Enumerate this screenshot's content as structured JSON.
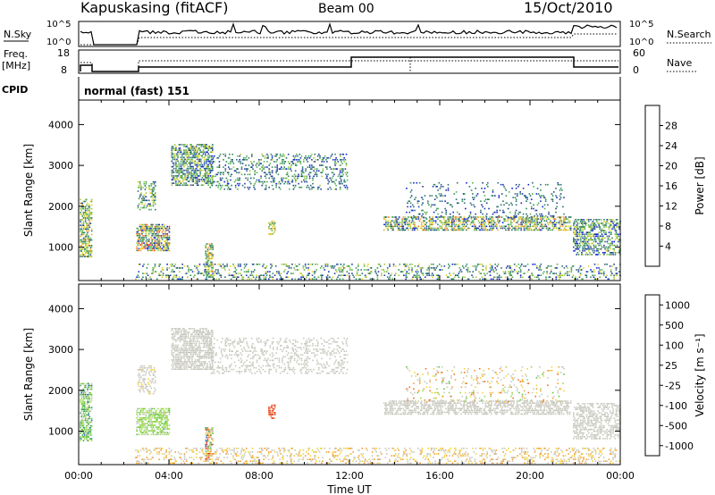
{
  "header": {
    "station": "Kapuskasing (fitACF)",
    "beam": "Beam 00",
    "date": "15/Oct/2010"
  },
  "panels": {
    "noise": {
      "left_label": "N.Sky",
      "right_label": "N.Search",
      "ticks": [
        "10^5",
        "10^0"
      ]
    },
    "freq": {
      "left_label_1": "Freq.",
      "left_label_2": "[MHz]",
      "left_ticks": [
        "18",
        "8"
      ],
      "right_label": "Nave",
      "right_ticks": [
        "60",
        "0"
      ]
    },
    "cpid": {
      "label": "CPID",
      "mode": "normal (fast) 151"
    }
  },
  "chart_data": [
    {
      "type": "heatmap",
      "name": "power",
      "ylabel": "Slant Range [km]",
      "ylim": [
        180,
        4600
      ],
      "yticks": [
        "1000",
        "2000",
        "3000",
        "4000"
      ],
      "xlim": [
        0,
        24
      ],
      "colorbar": {
        "label": "Power [dB]",
        "ticks": [
          "4",
          "8",
          "12",
          "16",
          "20",
          "24",
          "28"
        ],
        "colors": [
          "#0a1fe0",
          "#1f3c9e",
          "#2c6b78",
          "#2f8c5a",
          "#52b04d",
          "#a3c838",
          "#e7d22a",
          "#f0a428",
          "#f27022",
          "#e83a1e",
          "#e01010"
        ]
      },
      "scatter_clusters": [
        {
          "t0": 0.05,
          "t1": 0.55,
          "r0": 750,
          "r1": 2150,
          "density": 0.55,
          "levels": [
            0.1,
            0.7
          ]
        },
        {
          "t0": 2.55,
          "t1": 4.0,
          "r0": 900,
          "r1": 1550,
          "density": 0.6,
          "levels": [
            0.05,
            0.9
          ]
        },
        {
          "t0": 2.6,
          "t1": 3.4,
          "r0": 1900,
          "r1": 2600,
          "density": 0.35,
          "levels": [
            0.1,
            0.6
          ]
        },
        {
          "t0": 4.1,
          "t1": 5.9,
          "r0": 2500,
          "r1": 3500,
          "density": 0.55,
          "levels": [
            0.05,
            0.6
          ]
        },
        {
          "t0": 5.6,
          "t1": 5.95,
          "r0": 250,
          "r1": 1100,
          "density": 0.6,
          "levels": [
            0.2,
            0.8
          ]
        },
        {
          "t0": 5.8,
          "t1": 11.9,
          "r0": 2400,
          "r1": 3300,
          "density": 0.22,
          "levels": [
            0.05,
            0.5
          ]
        },
        {
          "t0": 8.4,
          "t1": 8.7,
          "r0": 1300,
          "r1": 1650,
          "density": 0.5,
          "levels": [
            0.3,
            0.7
          ]
        },
        {
          "t0": 13.5,
          "t1": 21.8,
          "r0": 1400,
          "r1": 1750,
          "density": 0.5,
          "levels": [
            0.05,
            0.75
          ]
        },
        {
          "t0": 14.5,
          "t1": 21.5,
          "r0": 1700,
          "r1": 2600,
          "density": 0.1,
          "levels": [
            0.05,
            0.4
          ]
        },
        {
          "t0": 21.9,
          "t1": 24.0,
          "r0": 800,
          "r1": 1700,
          "density": 0.45,
          "levels": [
            0.05,
            0.6
          ]
        },
        {
          "t0": 2.5,
          "t1": 24.0,
          "r0": 200,
          "r1": 600,
          "density": 0.2,
          "levels": [
            0.05,
            0.6
          ]
        }
      ]
    },
    {
      "type": "heatmap",
      "name": "velocity",
      "ylabel": "Slant Range [km]",
      "ylim": [
        180,
        4600
      ],
      "yticks": [
        "1000",
        "2000",
        "3000",
        "4000"
      ],
      "xlim": [
        0,
        24
      ],
      "xticks": [
        "00:00",
        "04:00",
        "08:00",
        "12:00",
        "16:00",
        "20:00",
        "00:00"
      ],
      "xlabel": "Time UT",
      "colorbar": {
        "label": "Velocity [m s⁻¹]",
        "ticks": [
          "1000",
          "500",
          "100",
          "25",
          "-25",
          "-100",
          "-500",
          "-1000"
        ],
        "colors": [
          "#1a2ec8",
          "#2d5ec0",
          "#3e9a66",
          "#5cc43a",
          "#9ad84a",
          "#c8c8be",
          "#c8c8be",
          "#f5d23a",
          "#f2a032",
          "#f07020",
          "#e53a1a",
          "#e01010"
        ]
      },
      "scatter_clusters": [
        {
          "t0": 0.05,
          "t1": 0.55,
          "r0": 750,
          "r1": 2150,
          "density": 0.55,
          "levels": [
            0.15,
            0.5
          ]
        },
        {
          "t0": 2.55,
          "t1": 4.0,
          "r0": 900,
          "r1": 1550,
          "density": 0.6,
          "levels": [
            0.3,
            0.45
          ]
        },
        {
          "t0": 2.6,
          "t1": 3.4,
          "r0": 1900,
          "r1": 2600,
          "density": 0.35,
          "levels": [
            0.45,
            0.6
          ]
        },
        {
          "t0": 4.1,
          "t1": 5.9,
          "r0": 2500,
          "r1": 3500,
          "density": 0.55,
          "levels": [
            0.45,
            0.55
          ]
        },
        {
          "t0": 5.6,
          "t1": 5.95,
          "r0": 250,
          "r1": 1100,
          "density": 0.6,
          "levels": [
            0.1,
            0.95
          ]
        },
        {
          "t0": 5.8,
          "t1": 11.9,
          "r0": 2400,
          "r1": 3300,
          "density": 0.22,
          "levels": [
            0.45,
            0.55
          ]
        },
        {
          "t0": 8.4,
          "t1": 8.7,
          "r0": 1300,
          "r1": 1650,
          "density": 0.5,
          "levels": [
            0.8,
            0.9
          ]
        },
        {
          "t0": 13.5,
          "t1": 21.8,
          "r0": 1400,
          "r1": 1750,
          "density": 0.5,
          "levels": [
            0.45,
            0.55
          ]
        },
        {
          "t0": 14.5,
          "t1": 21.5,
          "r0": 1700,
          "r1": 2600,
          "density": 0.1,
          "levels": [
            0.3,
            0.8
          ]
        },
        {
          "t0": 21.9,
          "t1": 24.0,
          "r0": 800,
          "r1": 1700,
          "density": 0.45,
          "levels": [
            0.45,
            0.55
          ]
        },
        {
          "t0": 2.5,
          "t1": 24.0,
          "r0": 200,
          "r1": 600,
          "density": 0.2,
          "levels": [
            0.45,
            0.75
          ]
        }
      ]
    }
  ]
}
